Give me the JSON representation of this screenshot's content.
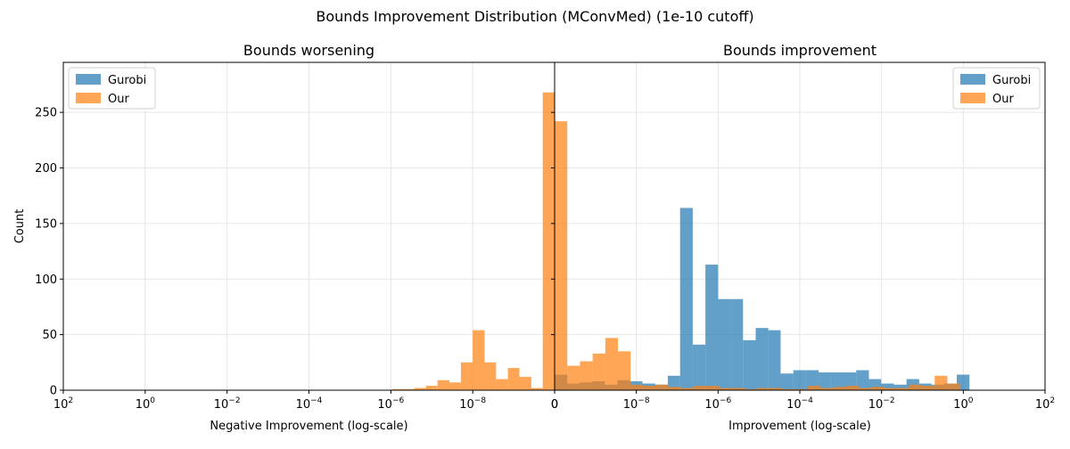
{
  "figure_title": "Bounds Improvement Distribution (MConvMed) (1e-10 cutoff)",
  "colors": {
    "gurobi": "#1f77b4",
    "our": "#ff7f0e",
    "grid": "#e6e6e6"
  },
  "chart_data": [
    {
      "type": "bar",
      "title": "Bounds worsening",
      "xlabel": "Negative Improvement (log-scale)",
      "ylabel": "Count",
      "xscale": "log",
      "x_inverted": true,
      "xlim": [
        2,
        -10
      ],
      "ylim": [
        0,
        295
      ],
      "yticks": [
        0,
        50,
        100,
        150,
        200,
        250
      ],
      "xticks": [
        {
          "exp": 2,
          "label": "10",
          "sup": "2"
        },
        {
          "exp": 0,
          "label": "10",
          "sup": "0"
        },
        {
          "exp": -2,
          "label": "10",
          "sup": "−2"
        },
        {
          "exp": -4,
          "label": "10",
          "sup": "−4"
        },
        {
          "exp": -6,
          "label": "10",
          "sup": "−6"
        },
        {
          "exp": -8,
          "label": "10",
          "sup": "−8"
        },
        {
          "exp": -10,
          "label": "0",
          "sup": ""
        }
      ],
      "grid": true,
      "legend_position": "top-left",
      "series": [
        {
          "name": "Gurobi",
          "color_key": "gurobi",
          "bins": []
        },
        {
          "name": "Our",
          "color_key": "our",
          "bins": [
            {
              "x0": -6.29,
              "x1": -6.03,
              "y": 1
            },
            {
              "x0": -6.57,
              "x1": -6.29,
              "y": 1
            },
            {
              "x0": -6.86,
              "x1": -6.57,
              "y": 2
            },
            {
              "x0": -7.14,
              "x1": -6.86,
              "y": 4
            },
            {
              "x0": -7.43,
              "x1": -7.14,
              "y": 9
            },
            {
              "x0": -7.71,
              "x1": -7.43,
              "y": 7
            },
            {
              "x0": -8.0,
              "x1": -7.71,
              "y": 25
            },
            {
              "x0": -8.29,
              "x1": -8.0,
              "y": 54
            },
            {
              "x0": -8.57,
              "x1": -8.29,
              "y": 25
            },
            {
              "x0": -8.86,
              "x1": -8.57,
              "y": 10
            },
            {
              "x0": -9.14,
              "x1": -8.86,
              "y": 20
            },
            {
              "x0": -9.43,
              "x1": -9.14,
              "y": 12
            },
            {
              "x0": -9.71,
              "x1": -9.43,
              "y": 2
            },
            {
              "x0": -10.0,
              "x1": -9.71,
              "y": 268
            }
          ]
        }
      ]
    },
    {
      "type": "bar",
      "title": "Bounds improvement",
      "xlabel": "Improvement (log-scale)",
      "ylabel": "",
      "xscale": "log",
      "x_inverted": false,
      "xlim": [
        -10,
        2
      ],
      "ylim": [
        0,
        295
      ],
      "yticks": [
        0,
        50,
        100,
        150,
        200,
        250
      ],
      "xticks": [
        {
          "exp": -10,
          "label": "0",
          "sup": ""
        },
        {
          "exp": -8,
          "label": "10",
          "sup": "−8"
        },
        {
          "exp": -6,
          "label": "10",
          "sup": "−6"
        },
        {
          "exp": -4,
          "label": "10",
          "sup": "−4"
        },
        {
          "exp": -2,
          "label": "10",
          "sup": "−2"
        },
        {
          "exp": 0,
          "label": "10",
          "sup": "0"
        },
        {
          "exp": 2,
          "label": "10",
          "sup": "2"
        }
      ],
      "grid": true,
      "legend_position": "top-right",
      "series": [
        {
          "name": "Gurobi",
          "color_key": "gurobi",
          "bins": [
            {
              "x0": -10.0,
              "x1": -9.69,
              "y": 14
            },
            {
              "x0": -9.69,
              "x1": -9.39,
              "y": 6
            },
            {
              "x0": -9.39,
              "x1": -9.08,
              "y": 7
            },
            {
              "x0": -9.08,
              "x1": -8.77,
              "y": 8
            },
            {
              "x0": -8.77,
              "x1": -8.46,
              "y": 5
            },
            {
              "x0": -8.46,
              "x1": -8.16,
              "y": 9
            },
            {
              "x0": -8.16,
              "x1": -7.85,
              "y": 8
            },
            {
              "x0": -7.85,
              "x1": -7.54,
              "y": 6
            },
            {
              "x0": -7.54,
              "x1": -7.23,
              "y": 5
            },
            {
              "x0": -7.23,
              "x1": -6.93,
              "y": 13
            },
            {
              "x0": -6.93,
              "x1": -6.62,
              "y": 164
            },
            {
              "x0": -6.62,
              "x1": -6.31,
              "y": 41
            },
            {
              "x0": -6.31,
              "x1": -6.0,
              "y": 113
            },
            {
              "x0": -6.0,
              "x1": -5.7,
              "y": 82
            },
            {
              "x0": -5.7,
              "x1": -5.39,
              "y": 82
            },
            {
              "x0": -5.39,
              "x1": -5.08,
              "y": 45
            },
            {
              "x0": -5.08,
              "x1": -4.77,
              "y": 56
            },
            {
              "x0": -4.77,
              "x1": -4.47,
              "y": 54
            },
            {
              "x0": -4.47,
              "x1": -4.16,
              "y": 15
            },
            {
              "x0": -4.16,
              "x1": -3.85,
              "y": 18
            },
            {
              "x0": -3.85,
              "x1": -3.54,
              "y": 18
            },
            {
              "x0": -3.54,
              "x1": -3.24,
              "y": 16
            },
            {
              "x0": -3.24,
              "x1": -2.93,
              "y": 16
            },
            {
              "x0": -2.93,
              "x1": -2.62,
              "y": 16
            },
            {
              "x0": -2.62,
              "x1": -2.31,
              "y": 18
            },
            {
              "x0": -2.31,
              "x1": -2.01,
              "y": 10
            },
            {
              "x0": -2.01,
              "x1": -1.7,
              "y": 6
            },
            {
              "x0": -1.7,
              "x1": -1.39,
              "y": 5
            },
            {
              "x0": -1.39,
              "x1": -1.08,
              "y": 10
            },
            {
              "x0": -1.08,
              "x1": -0.78,
              "y": 6
            },
            {
              "x0": -0.78,
              "x1": -0.47,
              "y": 5
            },
            {
              "x0": -0.47,
              "x1": -0.16,
              "y": 6
            },
            {
              "x0": -0.16,
              "x1": 0.15,
              "y": 14
            }
          ]
        },
        {
          "name": "Our",
          "color_key": "our",
          "bins": [
            {
              "x0": -10.0,
              "x1": -9.69,
              "y": 242
            },
            {
              "x0": -9.69,
              "x1": -9.38,
              "y": 22
            },
            {
              "x0": -9.38,
              "x1": -9.07,
              "y": 26
            },
            {
              "x0": -9.07,
              "x1": -8.76,
              "y": 33
            },
            {
              "x0": -8.76,
              "x1": -8.45,
              "y": 47
            },
            {
              "x0": -8.45,
              "x1": -8.14,
              "y": 35
            },
            {
              "x0": -8.14,
              "x1": -7.83,
              "y": 5
            },
            {
              "x0": -7.83,
              "x1": -7.52,
              "y": 4
            },
            {
              "x0": -7.52,
              "x1": -7.21,
              "y": 5
            },
            {
              "x0": -7.21,
              "x1": -6.9,
              "y": 3
            },
            {
              "x0": -6.9,
              "x1": -6.59,
              "y": 2
            },
            {
              "x0": -6.59,
              "x1": -6.28,
              "y": 4
            },
            {
              "x0": -6.28,
              "x1": -5.97,
              "y": 4
            },
            {
              "x0": -5.97,
              "x1": -5.66,
              "y": 2
            },
            {
              "x0": -5.66,
              "x1": -5.35,
              "y": 2
            },
            {
              "x0": -5.35,
              "x1": -5.04,
              "y": 1
            },
            {
              "x0": -5.04,
              "x1": -4.73,
              "y": 2
            },
            {
              "x0": -4.73,
              "x1": -4.42,
              "y": 2
            },
            {
              "x0": -4.42,
              "x1": -4.11,
              "y": 1
            },
            {
              "x0": -4.11,
              "x1": -3.8,
              "y": 1
            },
            {
              "x0": -3.8,
              "x1": -3.49,
              "y": 4
            },
            {
              "x0": -3.49,
              "x1": -3.18,
              "y": 2
            },
            {
              "x0": -3.18,
              "x1": -2.87,
              "y": 3
            },
            {
              "x0": -2.87,
              "x1": -2.56,
              "y": 4
            },
            {
              "x0": -2.56,
              "x1": -2.25,
              "y": 2
            },
            {
              "x0": -2.25,
              "x1": -1.94,
              "y": 3
            },
            {
              "x0": -1.94,
              "x1": -1.63,
              "y": 2
            },
            {
              "x0": -1.63,
              "x1": -1.32,
              "y": 2
            },
            {
              "x0": -1.32,
              "x1": -1.01,
              "y": 5
            },
            {
              "x0": -1.01,
              "x1": -0.7,
              "y": 4
            },
            {
              "x0": -0.7,
              "x1": -0.39,
              "y": 13
            },
            {
              "x0": -0.39,
              "x1": -0.08,
              "y": 6
            }
          ]
        }
      ]
    }
  ]
}
